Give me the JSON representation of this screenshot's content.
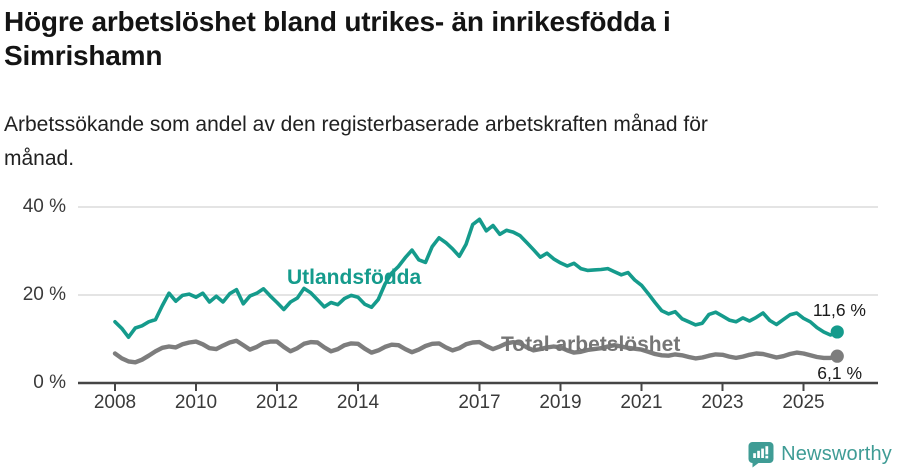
{
  "header": {
    "title_lines": [
      "Högre arbetslöshet bland utrikes- än inrikesfödda i",
      "Simrishamn"
    ],
    "subtitle_lines": [
      "Arbetssökande som andel av den registerbaserade arbetskraften månad för",
      "månad."
    ]
  },
  "chart_data": {
    "type": "line",
    "title": "Högre arbetslöshet bland utrikes- än inrikesfödda i Simrishamn",
    "subtitle": "Arbetssökande som andel av den registerbaserade arbetskraften månad för månad.",
    "x_unit": "year (monthly data)",
    "x_start_year": 2008,
    "points_per_year": 6,
    "x_end_approx": 2025.83,
    "x_tick_years": [
      2008,
      2010,
      2012,
      2014,
      2017,
      2019,
      2021,
      2023,
      2025
    ],
    "x_tick_labels": [
      "2008",
      "2010",
      "2012",
      "2014",
      "2017",
      "2019",
      "2021",
      "2023",
      "2025"
    ],
    "y_ticks": [
      {
        "label": "0 %",
        "value": 0
      },
      {
        "label": "20 %",
        "value": 20
      },
      {
        "label": "40 %",
        "value": 40
      }
    ],
    "ylim": [
      0,
      44
    ],
    "grid": "horizontal-only",
    "legend_position": "inline-labels",
    "series": [
      {
        "name": "Utlandsfödda",
        "color": "#159b8c",
        "end_label": "11,6 %",
        "end_value": 11.6,
        "values": [
          13.9,
          12.4,
          10.4,
          12.5,
          13.0,
          13.9,
          14.4,
          17.6,
          20.4,
          18.6,
          19.9,
          20.2,
          19.5,
          20.4,
          18.4,
          19.7,
          18.4,
          20.3,
          21.2,
          18.0,
          19.8,
          20.4,
          21.4,
          19.8,
          18.3,
          16.7,
          18.4,
          19.3,
          21.5,
          20.5,
          18.9,
          17.3,
          18.3,
          17.8,
          19.2,
          19.9,
          19.5,
          17.9,
          17.2,
          19.0,
          22.5,
          25.0,
          26.5,
          28.5,
          30.2,
          28.0,
          27.4,
          31.0,
          33.0,
          31.9,
          30.5,
          28.8,
          31.5,
          36.0,
          37.2,
          34.6,
          35.8,
          33.8,
          34.7,
          34.3,
          33.5,
          31.9,
          30.3,
          28.6,
          29.5,
          28.2,
          27.3,
          26.6,
          27.2,
          26.0,
          25.6,
          25.7,
          25.8,
          26.0,
          25.3,
          24.6,
          25.1,
          23.4,
          22.2,
          20.3,
          18.3,
          16.4,
          15.7,
          16.2,
          14.6,
          13.9,
          13.2,
          13.6,
          15.6,
          16.1,
          15.2,
          14.3,
          13.9,
          14.8,
          14.1,
          14.9,
          15.9,
          14.2,
          13.3,
          14.4,
          15.5,
          15.9,
          14.7,
          13.9,
          12.6,
          11.6,
          10.9,
          11.6
        ]
      },
      {
        "name": "Total arbetslöshet",
        "color": "#7d7d7d",
        "end_label": "6,1 %",
        "end_value": 6.1,
        "values": [
          6.7,
          5.6,
          4.9,
          4.7,
          5.3,
          6.2,
          7.2,
          8.0,
          8.3,
          8.1,
          8.8,
          9.2,
          9.4,
          8.8,
          7.9,
          7.7,
          8.5,
          9.2,
          9.6,
          8.6,
          7.6,
          8.2,
          9.1,
          9.4,
          9.4,
          8.2,
          7.2,
          7.9,
          8.9,
          9.3,
          9.2,
          8.1,
          7.2,
          7.7,
          8.6,
          9.0,
          8.9,
          7.8,
          6.9,
          7.4,
          8.2,
          8.7,
          8.6,
          7.7,
          7.0,
          7.6,
          8.4,
          8.9,
          9.0,
          8.1,
          7.4,
          7.9,
          8.8,
          9.2,
          9.3,
          8.4,
          7.7,
          8.3,
          9.0,
          9.3,
          9.0,
          8.1,
          7.4,
          7.7,
          8.1,
          8.3,
          8.1,
          7.4,
          6.9,
          7.1,
          7.5,
          7.7,
          7.9,
          8.3,
          8.6,
          8.3,
          8.0,
          7.8,
          7.6,
          7.1,
          6.6,
          6.3,
          6.2,
          6.5,
          6.3,
          5.9,
          5.6,
          5.8,
          6.2,
          6.5,
          6.4,
          6.0,
          5.7,
          6.0,
          6.4,
          6.7,
          6.6,
          6.2,
          5.8,
          6.1,
          6.6,
          6.9,
          6.7,
          6.3,
          5.9,
          5.7,
          5.7,
          6.1
        ]
      }
    ],
    "colors": {
      "grid": "#dcdcdc",
      "axis": "#454545",
      "tick_text": "#3a3a3a",
      "value_text": "#1a1a1a"
    }
  },
  "footer": {
    "brand": "Newsworthy",
    "brand_color": "#3f9c95"
  }
}
